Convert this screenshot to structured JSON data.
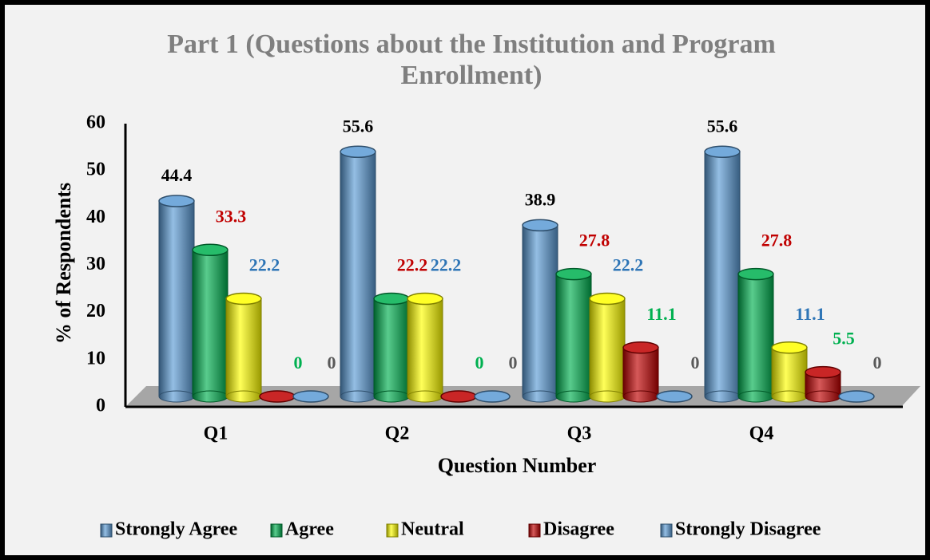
{
  "chart_data": {
    "type": "bar3d",
    "title": "Part 1 (Questions about the Institution and Program Enrollment)",
    "x_label": "Question Number",
    "y_label": "% of Respondents",
    "categories": [
      "Q1",
      "Q2",
      "Q3",
      "Q4"
    ],
    "ylim": [
      0,
      60
    ],
    "yticks": [
      0,
      10,
      20,
      30,
      40,
      50,
      60
    ],
    "legend": "bottom",
    "series": [
      {
        "name": "Strongly Agree",
        "color": "#5b9bd5",
        "label_color": "#000000",
        "values": [
          44.4,
          55.6,
          38.9,
          55.6
        ]
      },
      {
        "name": "Agree",
        "color": "#00b050",
        "label_color": "#c00000",
        "values": [
          33.3,
          22.2,
          27.8,
          27.8
        ]
      },
      {
        "name": "Neutral",
        "color": "#ffff00",
        "label_color": "#2e75b6",
        "values": [
          22.2,
          22.2,
          22.2,
          11.1
        ]
      },
      {
        "name": "Disagree",
        "color": "#c00000",
        "label_color": "#00b050",
        "values": [
          0,
          0,
          11.1,
          5.5
        ]
      },
      {
        "name": "Strongly Disagree",
        "color": "#5b9bd5",
        "label_color": "#595959",
        "values": [
          0,
          0,
          0,
          0
        ]
      }
    ]
  }
}
